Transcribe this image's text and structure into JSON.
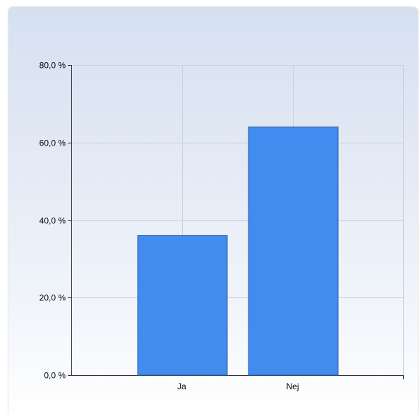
{
  "chart_data": {
    "type": "bar",
    "title": "",
    "xlabel": "",
    "ylabel": "",
    "categories": [
      "Ja",
      "Nej"
    ],
    "values": [
      36.0,
      64.0
    ],
    "ylim": [
      0,
      80
    ],
    "yticks": [
      0,
      20,
      40,
      60,
      80
    ],
    "ytick_labels": [
      "0,0 %",
      "20,0 %",
      "40,0 %",
      "60,0 %",
      "80,0 %"
    ],
    "grid": true,
    "legend": "none",
    "bar_color": "#428bef",
    "bar_edge_color": "#2f5f9f"
  }
}
